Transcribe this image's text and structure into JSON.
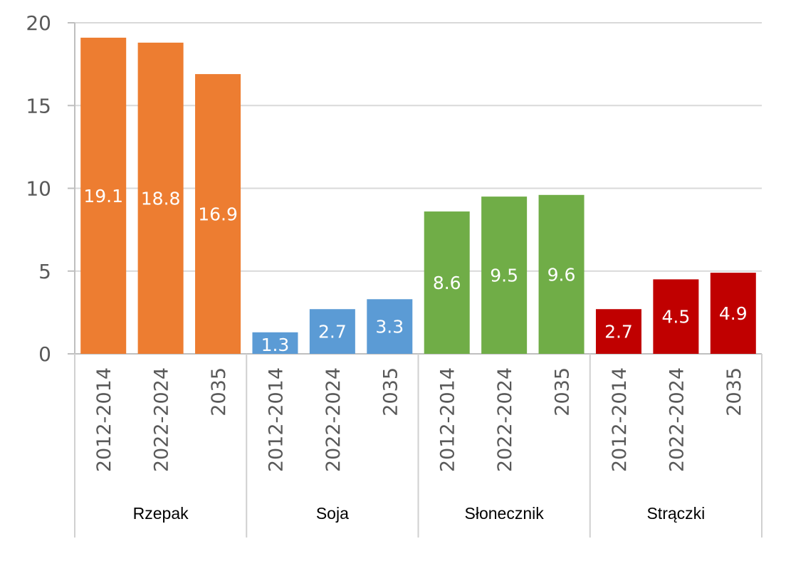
{
  "chart_data": {
    "type": "bar",
    "title": "",
    "xlabel": "",
    "ylabel": "",
    "ylim": [
      0,
      20
    ],
    "yticks": [
      "0",
      "5",
      "10",
      "15",
      "20"
    ],
    "grid": true,
    "legend": "none",
    "groups": [
      {
        "name": "Rzepak",
        "color": "#ED7D31",
        "categories": [
          "2012-2014",
          "2022-2024",
          "2035"
        ],
        "values": [
          19.1,
          18.8,
          16.9
        ],
        "labels": [
          "19.1",
          "18.8",
          "16.9"
        ]
      },
      {
        "name": "Soja",
        "color": "#5B9BD5",
        "categories": [
          "2012-2014",
          "2022-2024",
          "2035"
        ],
        "values": [
          1.3,
          2.7,
          3.3
        ],
        "labels": [
          "1.3",
          "2.7",
          "3.3"
        ]
      },
      {
        "name": "Słonecznik",
        "color": "#70AD47",
        "categories": [
          "2012-2014",
          "2022-2024",
          "2035"
        ],
        "values": [
          8.6,
          9.5,
          9.6
        ],
        "labels": [
          "8.6",
          "9.5",
          "9.6"
        ]
      },
      {
        "name": "Strączki",
        "color": "#C00000",
        "categories": [
          "2012-2014",
          "2022-2024",
          "2035"
        ],
        "values": [
          2.7,
          4.5,
          4.9
        ],
        "labels": [
          "2.7",
          "4.5",
          "4.9"
        ]
      }
    ]
  }
}
